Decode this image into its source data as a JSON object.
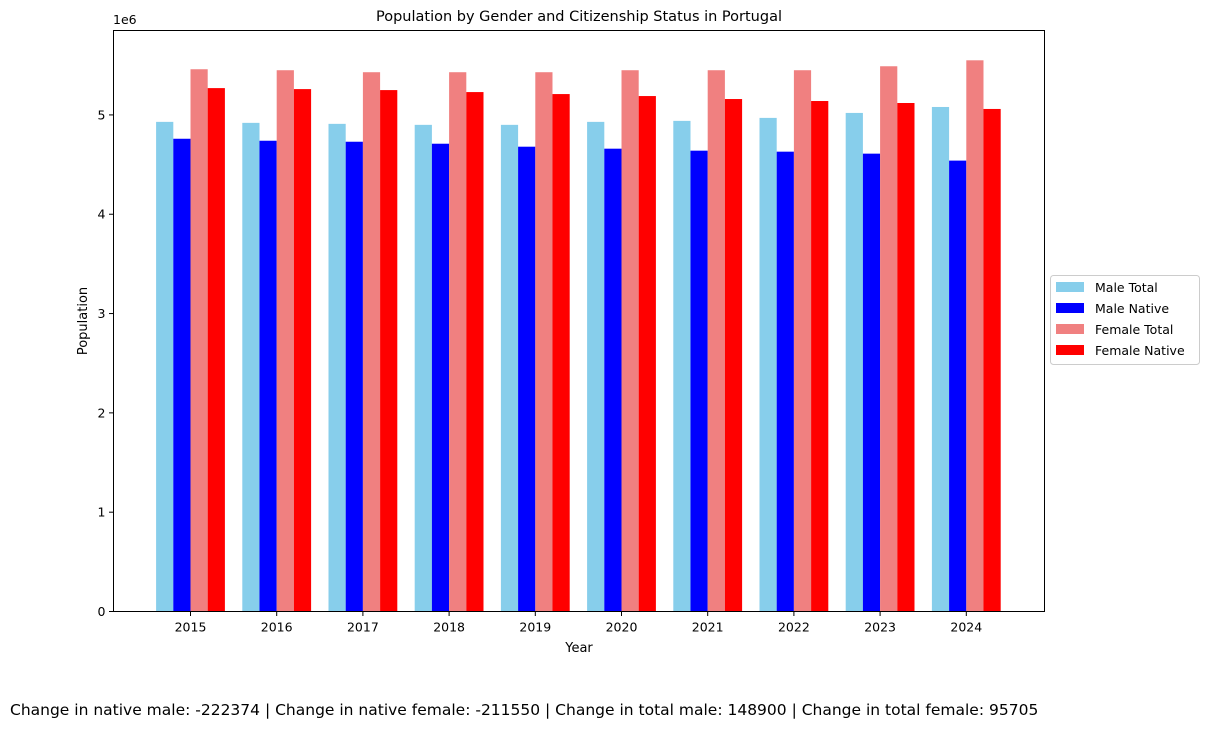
{
  "chart_data": {
    "type": "bar",
    "title": "Population by Gender and Citizenship Status in Portugal",
    "xlabel": "Year",
    "ylabel": "Population",
    "y_offset_label": "1e6",
    "ylim": [
      0,
      5.85
    ],
    "y_ticks": [
      0,
      1,
      2,
      3,
      4,
      5
    ],
    "grid": false,
    "legend_position": "center-right outside",
    "categories": [
      "2015",
      "2016",
      "2017",
      "2018",
      "2019",
      "2020",
      "2021",
      "2022",
      "2023",
      "2024"
    ],
    "series": [
      {
        "name": "Male Total",
        "color": "#87ceeb",
        "values": [
          4.93,
          4.92,
          4.91,
          4.9,
          4.9,
          4.93,
          4.94,
          4.97,
          5.02,
          5.08
        ]
      },
      {
        "name": "Male Native",
        "color": "#0000ff",
        "values": [
          4.76,
          4.74,
          4.73,
          4.71,
          4.68,
          4.66,
          4.64,
          4.63,
          4.61,
          4.54
        ]
      },
      {
        "name": "Female Total",
        "color": "#f08080",
        "values": [
          5.46,
          5.45,
          5.43,
          5.43,
          5.43,
          5.45,
          5.45,
          5.45,
          5.49,
          5.55
        ]
      },
      {
        "name": "Female Native",
        "color": "#ff0000",
        "values": [
          5.27,
          5.26,
          5.25,
          5.23,
          5.21,
          5.19,
          5.16,
          5.14,
          5.12,
          5.06
        ]
      }
    ]
  },
  "footer": {
    "text": "Change in native male: -222374 | Change in native female: -211550 | Change in total male: 148900 | Change in total female: 95705"
  }
}
